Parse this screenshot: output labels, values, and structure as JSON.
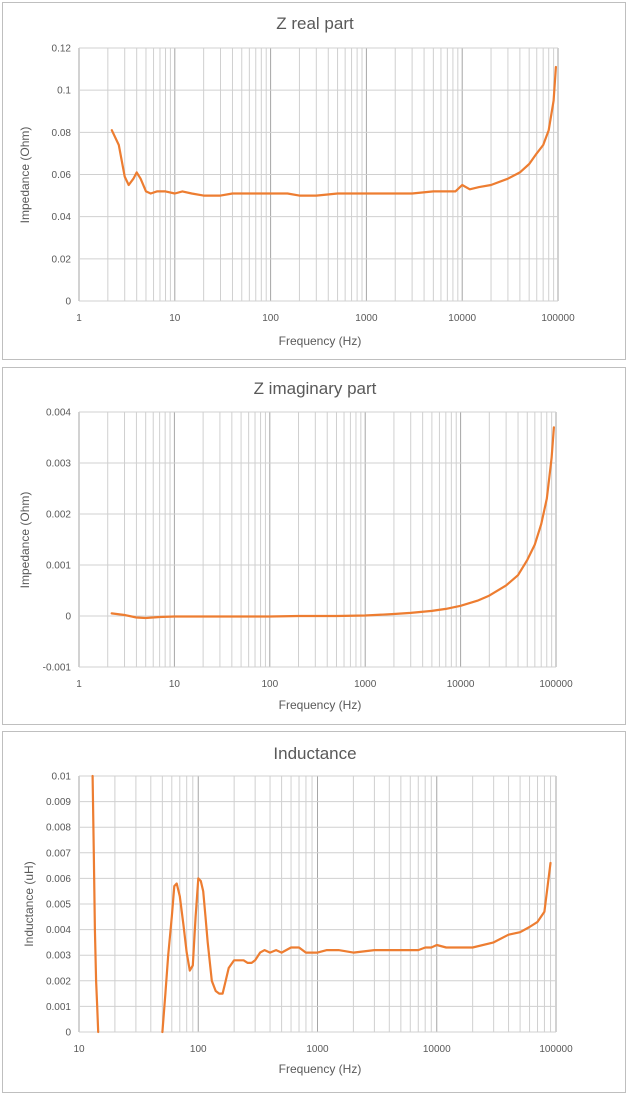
{
  "chart_data": [
    {
      "type": "line",
      "title": "Z real part",
      "xlabel": "Frequency (Hz)",
      "ylabel": "Impedance (Ohm)",
      "x_scale": "log",
      "xlim": [
        1,
        100000
      ],
      "ylim": [
        0,
        0.12
      ],
      "x_tick_labels": [
        "1",
        "10",
        "100",
        "1000",
        "10000",
        "100000"
      ],
      "y_tick_labels": [
        "0",
        "0.02",
        "0.04",
        "0.06",
        "0.08",
        "0.1",
        "0.12"
      ],
      "grid": true,
      "line_color": "#ED7D31",
      "series": [
        {
          "x": [
            2.2,
            2.6,
            3.0,
            3.3,
            3.7,
            4.0,
            4.4,
            5.0,
            5.6,
            6.5,
            8,
            10,
            12,
            15,
            20,
            30,
            40,
            50,
            70,
            100,
            150,
            200,
            300,
            500,
            700,
            1000,
            1500,
            2000,
            3000,
            5000,
            7000,
            8500,
            10000,
            12000,
            15000,
            20000,
            30000,
            40000,
            50000,
            60000,
            70000,
            80000,
            90000,
            95000
          ],
          "y": [
            0.081,
            0.074,
            0.059,
            0.055,
            0.058,
            0.061,
            0.058,
            0.052,
            0.051,
            0.052,
            0.052,
            0.051,
            0.052,
            0.051,
            0.05,
            0.05,
            0.051,
            0.051,
            0.051,
            0.051,
            0.051,
            0.05,
            0.05,
            0.051,
            0.051,
            0.051,
            0.051,
            0.051,
            0.051,
            0.052,
            0.052,
            0.052,
            0.055,
            0.053,
            0.054,
            0.055,
            0.058,
            0.061,
            0.065,
            0.07,
            0.074,
            0.081,
            0.095,
            0.111
          ]
        }
      ]
    },
    {
      "type": "line",
      "title": "Z imaginary part",
      "xlabel": "Frequency (Hz)",
      "ylabel": "Impedance (Ohm)",
      "x_scale": "log",
      "xlim": [
        1,
        100000
      ],
      "ylim": [
        -0.001,
        0.004
      ],
      "x_tick_labels": [
        "1",
        "10",
        "100",
        "1000",
        "10000",
        "100000"
      ],
      "y_tick_labels": [
        "-0.001",
        "0",
        "0.001",
        "0.002",
        "0.003",
        "0.004"
      ],
      "grid": true,
      "line_color": "#ED7D31",
      "series": [
        {
          "x": [
            2.2,
            3,
            4,
            5,
            7,
            10,
            20,
            50,
            100,
            200,
            500,
            1000,
            2000,
            3000,
            5000,
            7000,
            10000,
            15000,
            20000,
            30000,
            40000,
            50000,
            60000,
            70000,
            80000,
            90000,
            95000
          ],
          "y": [
            5e-05,
            2e-05,
            -3e-05,
            -4e-05,
            -2e-05,
            -1e-05,
            -1e-05,
            -1e-05,
            -1e-05,
            0,
            0,
            1e-05,
            4e-05,
            6e-05,
            0.0001,
            0.00014,
            0.0002,
            0.0003,
            0.0004,
            0.0006,
            0.0008,
            0.0011,
            0.0014,
            0.0018,
            0.0023,
            0.0031,
            0.0037
          ]
        }
      ]
    },
    {
      "type": "line",
      "title": "Inductance",
      "xlabel": "Frequency (Hz)",
      "ylabel": "Inductance (uH)",
      "x_scale": "log",
      "xlim": [
        10,
        100000
      ],
      "ylim": [
        0,
        0.01
      ],
      "x_tick_labels": [
        "10",
        "100",
        "1000",
        "10000",
        "100000"
      ],
      "y_tick_labels": [
        "0",
        "0.001",
        "0.002",
        "0.003",
        "0.004",
        "0.005",
        "0.006",
        "0.007",
        "0.008",
        "0.009",
        "0.01"
      ],
      "grid": true,
      "line_color": "#ED7D31",
      "series": [
        {
          "x": [
            13,
            13.3,
            13.6,
            13.9,
            14.2,
            14.5
          ],
          "y": [
            0.01,
            0.007,
            0.004,
            0.002,
            0.001,
            0
          ]
        },
        {
          "x": [
            50,
            53,
            56,
            60,
            63,
            66,
            70,
            75,
            80,
            85,
            90,
            95,
            100,
            105,
            110,
            115,
            120,
            130,
            140,
            150,
            160,
            170,
            180,
            200,
            220,
            240,
            260,
            280,
            300,
            330,
            360,
            400,
            450,
            500,
            600,
            700,
            800,
            1000,
            1200,
            1500,
            2000,
            3000,
            4000,
            5000,
            6000,
            7000,
            8000,
            9000,
            10000,
            12000,
            15000,
            20000,
            30000,
            40000,
            50000,
            60000,
            70000,
            80000,
            90000
          ],
          "y": [
            0,
            0.0015,
            0.003,
            0.0045,
            0.0057,
            0.0058,
            0.0053,
            0.0042,
            0.0031,
            0.0024,
            0.0026,
            0.0045,
            0.006,
            0.0059,
            0.0055,
            0.0045,
            0.0035,
            0.002,
            0.0016,
            0.0015,
            0.0015,
            0.002,
            0.0025,
            0.0028,
            0.0028,
            0.0028,
            0.0027,
            0.0027,
            0.0028,
            0.0031,
            0.0032,
            0.0031,
            0.0032,
            0.0031,
            0.0033,
            0.0033,
            0.0031,
            0.0031,
            0.0032,
            0.0032,
            0.0031,
            0.0032,
            0.0032,
            0.0032,
            0.0032,
            0.0032,
            0.0033,
            0.0033,
            0.0034,
            0.0033,
            0.0033,
            0.0033,
            0.0035,
            0.0038,
            0.0039,
            0.0041,
            0.0043,
            0.0047,
            0.0066
          ]
        }
      ]
    }
  ]
}
